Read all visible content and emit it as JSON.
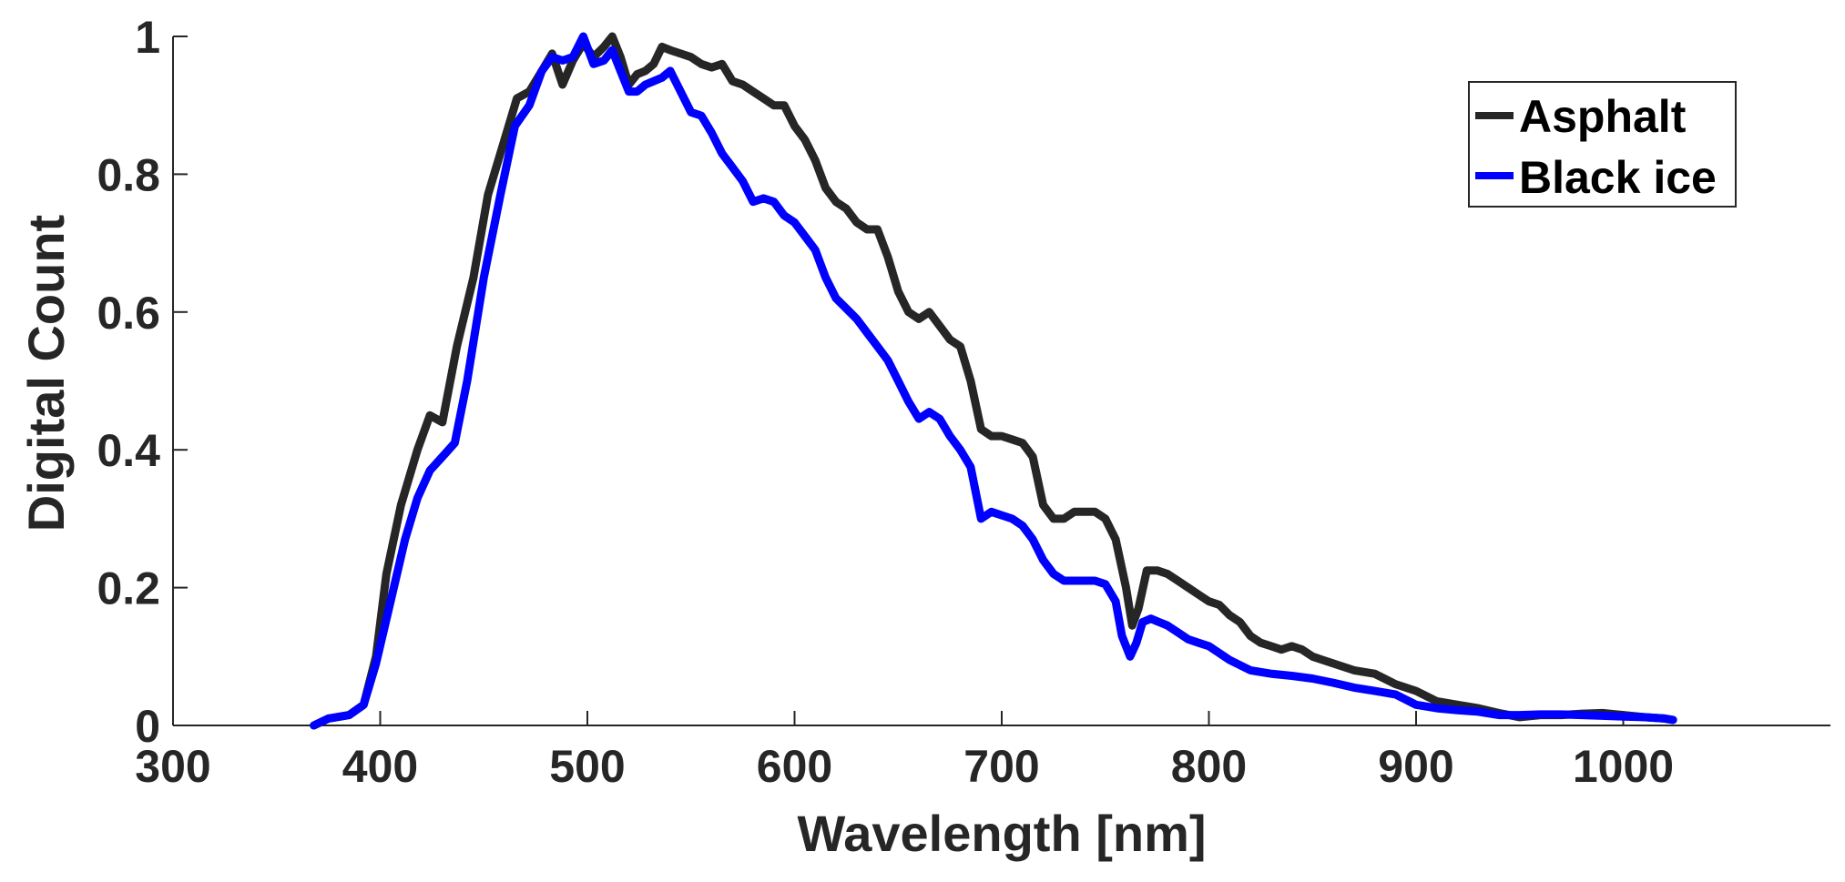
{
  "chart_data": {
    "type": "line",
    "title": "",
    "xlabel": "Wavelength [nm]",
    "ylabel": "Digital Count",
    "xlim": [
      300,
      1100
    ],
    "ylim": [
      0,
      1
    ],
    "xticks": [
      300,
      400,
      500,
      600,
      700,
      800,
      900,
      1000
    ],
    "yticks": [
      0,
      0.2,
      0.4,
      0.6,
      0.8,
      1
    ],
    "xtick_labels": [
      "300",
      "400",
      "500",
      "600",
      "700",
      "800",
      "900",
      "1000"
    ],
    "ytick_labels": [
      "0",
      "0.2",
      "0.4",
      "0.6",
      "0.8",
      "1"
    ],
    "grid": false,
    "legend_position": "top-right",
    "series": [
      {
        "name": "Asphalt",
        "color": "#262626",
        "x": [
          368,
          375,
          385,
          392,
          398,
          403,
          410,
          418,
          424,
          430,
          437,
          445,
          452,
          460,
          466,
          472,
          478,
          483,
          488,
          493,
          498,
          503,
          508,
          512,
          516,
          520,
          524,
          528,
          532,
          536,
          540,
          545,
          550,
          555,
          560,
          565,
          570,
          575,
          580,
          585,
          590,
          595,
          600,
          605,
          610,
          615,
          620,
          625,
          630,
          635,
          640,
          645,
          650,
          655,
          660,
          665,
          670,
          675,
          680,
          685,
          690,
          695,
          700,
          705,
          710,
          715,
          720,
          725,
          730,
          735,
          740,
          745,
          750,
          755,
          760,
          763,
          766,
          770,
          775,
          780,
          785,
          790,
          795,
          800,
          805,
          810,
          815,
          820,
          825,
          830,
          835,
          840,
          845,
          850,
          855,
          860,
          870,
          880,
          890,
          900,
          910,
          920,
          930,
          940,
          950,
          960,
          970,
          980,
          990,
          1000,
          1010,
          1020,
          1024
        ],
        "values": [
          0.0,
          0.01,
          0.015,
          0.03,
          0.1,
          0.22,
          0.32,
          0.4,
          0.45,
          0.44,
          0.55,
          0.65,
          0.77,
          0.85,
          0.91,
          0.92,
          0.95,
          0.975,
          0.93,
          0.965,
          0.99,
          0.97,
          0.985,
          1.0,
          0.97,
          0.93,
          0.945,
          0.95,
          0.96,
          0.985,
          0.98,
          0.975,
          0.97,
          0.96,
          0.955,
          0.96,
          0.935,
          0.93,
          0.92,
          0.91,
          0.9,
          0.9,
          0.87,
          0.85,
          0.82,
          0.78,
          0.76,
          0.75,
          0.73,
          0.72,
          0.72,
          0.68,
          0.63,
          0.6,
          0.59,
          0.6,
          0.58,
          0.56,
          0.55,
          0.5,
          0.43,
          0.42,
          0.42,
          0.415,
          0.41,
          0.39,
          0.32,
          0.3,
          0.3,
          0.31,
          0.31,
          0.31,
          0.3,
          0.27,
          0.2,
          0.145,
          0.17,
          0.225,
          0.225,
          0.22,
          0.21,
          0.2,
          0.19,
          0.18,
          0.175,
          0.16,
          0.15,
          0.13,
          0.12,
          0.115,
          0.11,
          0.115,
          0.11,
          0.1,
          0.095,
          0.09,
          0.08,
          0.075,
          0.06,
          0.05,
          0.035,
          0.03,
          0.025,
          0.018,
          0.012,
          0.015,
          0.015,
          0.017,
          0.018,
          0.015,
          0.012,
          0.01,
          0.008
        ]
      },
      {
        "name": "Black ice",
        "color": "#0000ff",
        "x": [
          368,
          375,
          385,
          392,
          398,
          405,
          412,
          418,
          424,
          430,
          436,
          442,
          450,
          458,
          465,
          472,
          478,
          483,
          488,
          493,
          498,
          503,
          508,
          512,
          516,
          520,
          524,
          528,
          532,
          536,
          540,
          545,
          550,
          555,
          560,
          565,
          570,
          575,
          580,
          585,
          590,
          595,
          600,
          605,
          610,
          615,
          620,
          625,
          630,
          635,
          640,
          645,
          650,
          655,
          660,
          665,
          670,
          675,
          680,
          685,
          690,
          695,
          700,
          705,
          710,
          715,
          720,
          725,
          730,
          735,
          740,
          745,
          750,
          755,
          758,
          762,
          765,
          768,
          772,
          776,
          780,
          785,
          790,
          795,
          800,
          810,
          820,
          830,
          840,
          850,
          860,
          870,
          880,
          890,
          900,
          910,
          920,
          930,
          940,
          950,
          960,
          970,
          980,
          990,
          1000,
          1010,
          1020,
          1024
        ],
        "values": [
          0.0,
          0.01,
          0.015,
          0.03,
          0.09,
          0.18,
          0.27,
          0.33,
          0.37,
          0.39,
          0.41,
          0.5,
          0.65,
          0.77,
          0.87,
          0.9,
          0.95,
          0.97,
          0.965,
          0.97,
          1.0,
          0.96,
          0.965,
          0.98,
          0.95,
          0.92,
          0.92,
          0.93,
          0.935,
          0.94,
          0.95,
          0.92,
          0.89,
          0.885,
          0.86,
          0.83,
          0.81,
          0.79,
          0.76,
          0.765,
          0.76,
          0.74,
          0.73,
          0.71,
          0.69,
          0.65,
          0.62,
          0.605,
          0.59,
          0.57,
          0.55,
          0.53,
          0.5,
          0.47,
          0.445,
          0.455,
          0.445,
          0.42,
          0.4,
          0.375,
          0.3,
          0.31,
          0.305,
          0.3,
          0.29,
          0.27,
          0.24,
          0.22,
          0.21,
          0.21,
          0.21,
          0.21,
          0.205,
          0.18,
          0.13,
          0.1,
          0.12,
          0.15,
          0.155,
          0.15,
          0.145,
          0.135,
          0.125,
          0.12,
          0.115,
          0.095,
          0.08,
          0.075,
          0.072,
          0.068,
          0.062,
          0.055,
          0.05,
          0.045,
          0.03,
          0.025,
          0.022,
          0.02,
          0.015,
          0.015,
          0.016,
          0.016,
          0.015,
          0.014,
          0.013,
          0.012,
          0.01,
          0.008
        ]
      }
    ]
  }
}
